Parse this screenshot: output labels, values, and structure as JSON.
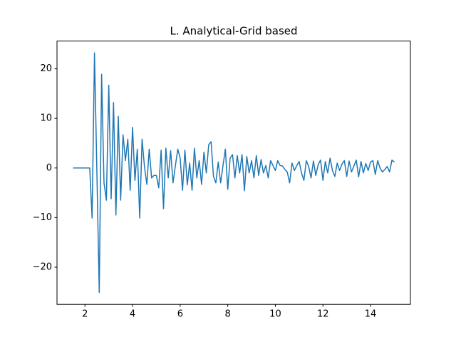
{
  "chart_data": {
    "type": "line",
    "title": "L. Analytical-Grid based",
    "color": "#1f77b4",
    "x": [
      1.5,
      1.6,
      1.7,
      1.8,
      1.9,
      2.0,
      2.1,
      2.2,
      2.3,
      2.4,
      2.5,
      2.6,
      2.7,
      2.8,
      2.9,
      3.0,
      3.1,
      3.2,
      3.3,
      3.4,
      3.5,
      3.6,
      3.7,
      3.8,
      3.9,
      4.0,
      4.1,
      4.2,
      4.3,
      4.4,
      4.5,
      4.6,
      4.7,
      4.8,
      4.9,
      5.0,
      5.1,
      5.2,
      5.3,
      5.4,
      5.5,
      5.6,
      5.7,
      5.8,
      5.9,
      6.0,
      6.1,
      6.2,
      6.3,
      6.4,
      6.5,
      6.6,
      6.7,
      6.8,
      6.9,
      7.0,
      7.1,
      7.2,
      7.3,
      7.4,
      7.5,
      7.6,
      7.7,
      7.8,
      7.9,
      8.0,
      8.1,
      8.2,
      8.3,
      8.4,
      8.5,
      8.6,
      8.7,
      8.8,
      8.9,
      9.0,
      9.1,
      9.2,
      9.3,
      9.4,
      9.5,
      9.6,
      9.7,
      9.8,
      9.9,
      10.0,
      10.1,
      10.2,
      10.3,
      10.4,
      10.5,
      10.6,
      10.7,
      10.8,
      10.9,
      11.0,
      11.1,
      11.2,
      11.3,
      11.4,
      11.5,
      11.6,
      11.7,
      11.8,
      11.9,
      12.0,
      12.1,
      12.2,
      12.3,
      12.4,
      12.5,
      12.6,
      12.7,
      12.8,
      12.9,
      13.0,
      13.1,
      13.2,
      13.3,
      13.4,
      13.5,
      13.6,
      13.7,
      13.8,
      13.9,
      14.0,
      14.1,
      14.2,
      14.3,
      14.4,
      14.5,
      14.6,
      14.7,
      14.8,
      14.9,
      15.0
    ],
    "values": [
      0,
      0,
      0,
      0,
      0,
      0,
      0,
      0,
      -10.1,
      23.2,
      -0.5,
      -25.1,
      18.9,
      -3,
      -6.5,
      16.7,
      -6.2,
      13.2,
      -9.5,
      10.4,
      -6.5,
      6.7,
      1.5,
      5.8,
      -4.5,
      8.2,
      -2.5,
      3.8,
      -10.1,
      5.8,
      0.3,
      -3.3,
      3.8,
      -2,
      -1.5,
      -1.5,
      -4,
      3.6,
      -8.2,
      4,
      -2,
      3.5,
      -3,
      0.5,
      3.8,
      2,
      -4.5,
      3.6,
      -3.4,
      1,
      -4.5,
      4,
      -2,
      1.5,
      -3.3,
      3.2,
      -1,
      4.7,
      5.3,
      -1.7,
      -3,
      1.2,
      -3,
      0.5,
      3.8,
      -4.3,
      2,
      2.7,
      -2,
      2.5,
      -1,
      2.7,
      -4.6,
      2.3,
      -1,
      1.5,
      -2,
      2.5,
      -1.5,
      1.7,
      -1,
      0.5,
      -2,
      1.5,
      0.5,
      -0.5,
      1.5,
      0.5,
      0.4,
      -0.3,
      -0.8,
      -3,
      1,
      -0.5,
      0.5,
      1.3,
      -1,
      -2.5,
      1.5,
      0.3,
      -2,
      1.4,
      -1.5,
      0.7,
      1.6,
      -2.5,
      1.3,
      -1,
      2,
      -0.5,
      -1.7,
      1,
      -0.5,
      0.8,
      1.5,
      -1.7,
      1.4,
      -0.8,
      0.4,
      1.6,
      -1.8,
      1.3,
      -1,
      0.9,
      -0.5,
      1.2,
      1.5,
      -1.3,
      1.5,
      0,
      -0.8,
      -0.3,
      0.3,
      -0.8,
      1.6,
      1.2
    ],
    "xlim": [
      0.825,
      15.675
    ],
    "ylim": [
      -27.5,
      25.6
    ],
    "xticks": [
      2,
      4,
      6,
      8,
      10,
      12,
      14
    ],
    "yticks": [
      {
        "value": -20,
        "label": "−20"
      },
      {
        "value": -10,
        "label": "−10"
      },
      0,
      10,
      20
    ]
  }
}
